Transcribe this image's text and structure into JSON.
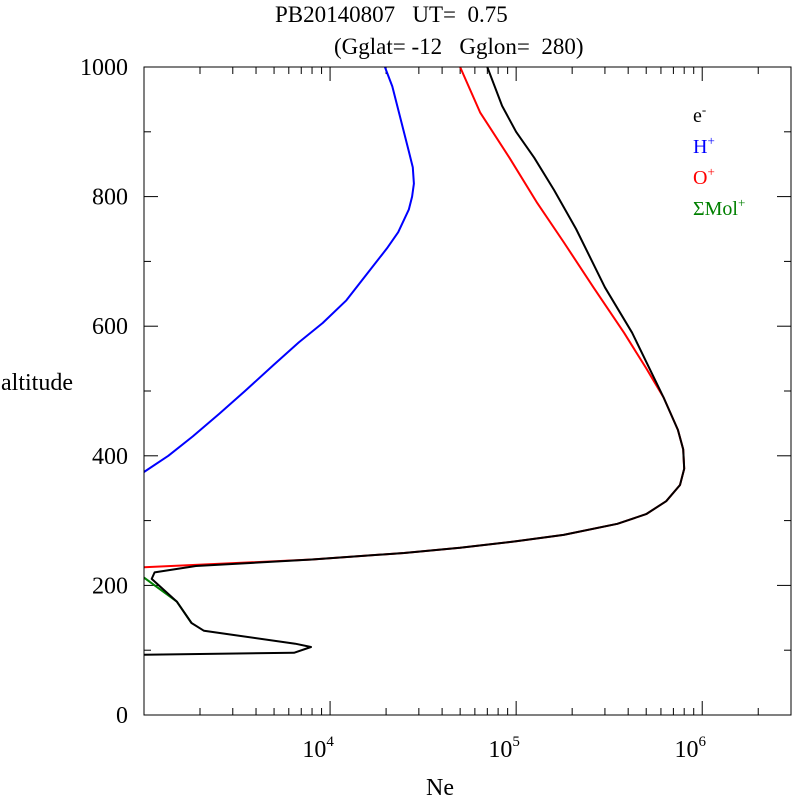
{
  "chart_data": {
    "type": "line",
    "title_line1": "PB20140807   UT=  0.75",
    "title_line2": "(Gglat= -12   Gglon=  280)",
    "xlabel": "Ne",
    "ylabel": "altitude",
    "x_scale": "log",
    "xlim": [
      1000,
      3000000
    ],
    "ylim": [
      0,
      1000
    ],
    "x_ticks": [
      {
        "value": 10000,
        "base": "10",
        "exp": "4"
      },
      {
        "value": 100000,
        "base": "10",
        "exp": "5"
      },
      {
        "value": 1000000,
        "base": "10",
        "exp": "6"
      }
    ],
    "y_ticks": [
      {
        "value": 0,
        "label": "0"
      },
      {
        "value": 200,
        "label": "200"
      },
      {
        "value": 400,
        "label": "400"
      },
      {
        "value": 600,
        "label": "600"
      },
      {
        "value": 800,
        "label": "800"
      },
      {
        "value": 1000,
        "label": "1000"
      }
    ],
    "legend_placement": "top-right",
    "series": [
      {
        "key": "h",
        "name": "H",
        "sup": "+",
        "color": "#0000ff",
        "points": [
          [
            1000,
            375
          ],
          [
            1350,
            400
          ],
          [
            1830,
            430
          ],
          [
            2540,
            465
          ],
          [
            3490,
            500
          ],
          [
            4960,
            540
          ],
          [
            6790,
            575
          ],
          [
            9130,
            605
          ],
          [
            12240,
            640
          ],
          [
            15710,
            680
          ],
          [
            20190,
            720
          ],
          [
            23220,
            745
          ],
          [
            26500,
            780
          ],
          [
            27600,
            800
          ],
          [
            28200,
            820
          ],
          [
            27850,
            845
          ],
          [
            26500,
            870
          ],
          [
            24400,
            910
          ],
          [
            21600,
            970
          ],
          [
            19700,
            1000
          ]
        ]
      },
      {
        "key": "o",
        "name": "O",
        "sup": "+",
        "color": "#ff0000",
        "points": [
          [
            1000,
            228
          ],
          [
            8000,
            240
          ],
          [
            25000,
            250
          ],
          [
            50000,
            258
          ],
          [
            100000,
            268
          ],
          [
            180000,
            278
          ],
          [
            350000,
            295
          ],
          [
            500000,
            310
          ],
          [
            640000,
            330
          ],
          [
            760000,
            355
          ],
          [
            800000,
            380
          ],
          [
            790000,
            410
          ],
          [
            740000,
            440
          ],
          [
            620000,
            490
          ],
          [
            500000,
            535
          ],
          [
            380000,
            590
          ],
          [
            260000,
            660
          ],
          [
            180000,
            730
          ],
          [
            130000,
            790
          ],
          [
            92000,
            860
          ],
          [
            64000,
            930
          ],
          [
            50000,
            1000
          ]
        ]
      },
      {
        "key": "mol",
        "name": "ΣMol",
        "sup": "+",
        "color": "#008000",
        "points": [
          [
            1000,
            212
          ],
          [
            1500,
            175
          ],
          [
            1800,
            142
          ]
        ]
      },
      {
        "key": "e",
        "name": "e",
        "sup": "-",
        "color": "#000000",
        "points": [
          [
            1000,
            93
          ],
          [
            6400,
            96
          ],
          [
            7900,
            105
          ],
          [
            6500,
            110
          ],
          [
            2100,
            130
          ],
          [
            1800,
            142
          ],
          [
            1500,
            175
          ],
          [
            1100,
            210
          ],
          [
            1140,
            220
          ],
          [
            1900,
            230
          ],
          [
            8000,
            240
          ],
          [
            25000,
            250
          ],
          [
            50000,
            258
          ],
          [
            100000,
            268
          ],
          [
            180000,
            278
          ],
          [
            350000,
            295
          ],
          [
            500000,
            310
          ],
          [
            640000,
            330
          ],
          [
            760000,
            355
          ],
          [
            800000,
            380
          ],
          [
            790000,
            410
          ],
          [
            740000,
            440
          ],
          [
            620000,
            490
          ],
          [
            520000,
            535
          ],
          [
            420000,
            590
          ],
          [
            300000,
            660
          ],
          [
            210000,
            750
          ],
          [
            160000,
            810
          ],
          [
            125000,
            860
          ],
          [
            100000,
            900
          ],
          [
            84000,
            940
          ],
          [
            70000,
            1000
          ]
        ]
      }
    ]
  }
}
